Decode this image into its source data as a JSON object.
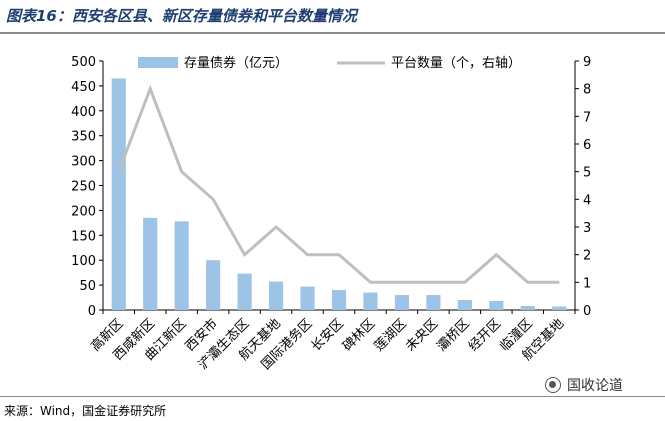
{
  "title": "图表16：西安各区县、新区存量债券和平台数量情况",
  "source": "来源：Wind，国金证券研究所",
  "watermark": "国收论道",
  "colors": {
    "bar": "#9dc3e6",
    "line": "#bfbfbf",
    "title": "#1f3f73"
  },
  "chart_data": {
    "type": "bar",
    "categories": [
      "高新区",
      "西咸新区",
      "曲江新区",
      "西安市",
      "浐灞生态区",
      "航天基地",
      "国际港务区",
      "长安区",
      "碑林区",
      "莲湖区",
      "未央区",
      "灞桥区",
      "经开区",
      "临潼区",
      "航空基地"
    ],
    "series": [
      {
        "name": "存量债券（亿元）",
        "type": "bar",
        "axis": "left",
        "values": [
          465,
          185,
          178,
          100,
          73,
          57,
          47,
          40,
          35,
          30,
          30,
          20,
          18,
          8,
          7
        ]
      },
      {
        "name": "平台数量（个，右轴）",
        "type": "line",
        "axis": "right",
        "values": [
          5,
          8,
          5,
          4,
          2,
          3,
          2,
          2,
          1,
          1,
          1,
          1,
          2,
          1,
          1
        ]
      }
    ],
    "ylim": [
      0,
      500
    ],
    "yticks": [
      0,
      50,
      100,
      150,
      200,
      250,
      300,
      350,
      400,
      450,
      500
    ],
    "y2lim": [
      0,
      9
    ],
    "y2ticks": [
      0,
      1,
      2,
      3,
      4,
      5,
      6,
      7,
      8,
      9
    ],
    "legend_position": "top",
    "grid": false
  }
}
